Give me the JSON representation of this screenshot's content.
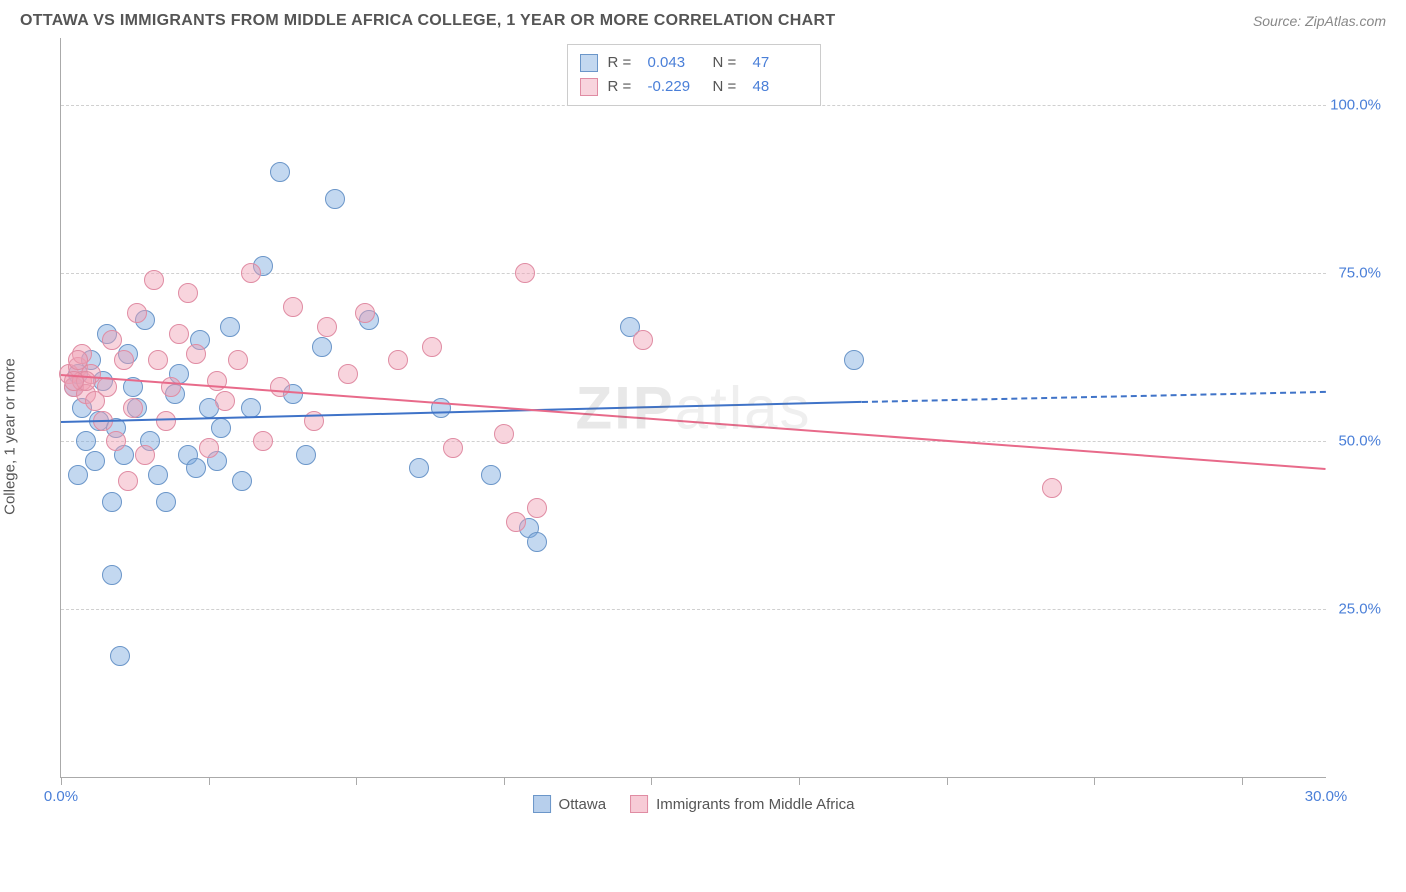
{
  "title": "OTTAWA VS IMMIGRANTS FROM MIDDLE AFRICA COLLEGE, 1 YEAR OR MORE CORRELATION CHART",
  "source": "Source: ZipAtlas.com",
  "watermark_bold": "ZIP",
  "watermark_rest": "atlas",
  "ylabel": "College, 1 year or more",
  "chart": {
    "type": "scatter",
    "x_domain": [
      0,
      30
    ],
    "y_domain": [
      0,
      110
    ],
    "x_ticks": [
      0,
      3.5,
      7,
      10.5,
      14,
      17.5,
      21,
      24.5,
      28
    ],
    "x_tick_labels": {
      "0": "0.0%",
      "30": "30.0%"
    },
    "y_gridlines": [
      25,
      50,
      75,
      100
    ],
    "y_tick_labels": {
      "25": "25.0%",
      "50": "50.0%",
      "75": "75.0%",
      "100": "100.0%"
    },
    "grid_color": "#d0d0d0",
    "axis_color": "#aaaaaa",
    "background_color": "#ffffff",
    "point_radius": 10,
    "series": [
      {
        "name": "Ottawa",
        "fill": "rgba(123,168,221,0.45)",
        "stroke": "#6b96c9",
        "r_value": "0.043",
        "n_value": "47",
        "trend": {
          "x1": 0,
          "y1": 53,
          "x2": 19,
          "y2": 56,
          "dash_x2": 30,
          "dash_y2": 57.5,
          "color": "#3f73c8",
          "width": 2
        },
        "points": [
          [
            0.3,
            58
          ],
          [
            0.4,
            60
          ],
          [
            0.5,
            55
          ],
          [
            0.6,
            50
          ],
          [
            0.7,
            62
          ],
          [
            0.8,
            47
          ],
          [
            0.9,
            53
          ],
          [
            0.4,
            45
          ],
          [
            1.0,
            59
          ],
          [
            1.1,
            66
          ],
          [
            1.2,
            41
          ],
          [
            1.3,
            52
          ],
          [
            1.5,
            48
          ],
          [
            1.6,
            63
          ],
          [
            1.7,
            58
          ],
          [
            1.8,
            55
          ],
          [
            1.2,
            30
          ],
          [
            1.4,
            18
          ],
          [
            2.0,
            68
          ],
          [
            2.1,
            50
          ],
          [
            2.3,
            45
          ],
          [
            2.5,
            41
          ],
          [
            2.7,
            57
          ],
          [
            2.8,
            60
          ],
          [
            3.0,
            48
          ],
          [
            3.2,
            46
          ],
          [
            3.3,
            65
          ],
          [
            3.5,
            55
          ],
          [
            3.7,
            47
          ],
          [
            3.8,
            52
          ],
          [
            4.0,
            67
          ],
          [
            4.3,
            44
          ],
          [
            4.5,
            55
          ],
          [
            4.8,
            76
          ],
          [
            5.2,
            90
          ],
          [
            5.5,
            57
          ],
          [
            5.8,
            48
          ],
          [
            6.2,
            64
          ],
          [
            6.5,
            86
          ],
          [
            7.3,
            68
          ],
          [
            8.5,
            46
          ],
          [
            9.0,
            55
          ],
          [
            10.2,
            45
          ],
          [
            11.1,
            37
          ],
          [
            11.3,
            35
          ],
          [
            13.5,
            67
          ],
          [
            18.8,
            62
          ]
        ]
      },
      {
        "name": "Immigrants from Middle Africa",
        "fill": "rgba(240,160,180,0.45)",
        "stroke": "#e08ca3",
        "r_value": "-0.229",
        "n_value": "48",
        "trend": {
          "x1": 0,
          "y1": 60,
          "x2": 30,
          "y2": 46,
          "color": "#e86a8a",
          "width": 2
        },
        "points": [
          [
            0.2,
            60
          ],
          [
            0.3,
            58
          ],
          [
            0.4,
            61
          ],
          [
            0.5,
            59
          ],
          [
            0.5,
            63
          ],
          [
            0.6,
            57
          ],
          [
            0.7,
            60
          ],
          [
            0.8,
            56
          ],
          [
            0.4,
            62
          ],
          [
            0.6,
            59
          ],
          [
            1.0,
            53
          ],
          [
            1.1,
            58
          ],
          [
            1.2,
            65
          ],
          [
            1.3,
            50
          ],
          [
            1.5,
            62
          ],
          [
            1.6,
            44
          ],
          [
            1.7,
            55
          ],
          [
            1.8,
            69
          ],
          [
            2.0,
            48
          ],
          [
            2.2,
            74
          ],
          [
            2.3,
            62
          ],
          [
            2.5,
            53
          ],
          [
            2.6,
            58
          ],
          [
            2.8,
            66
          ],
          [
            3.0,
            72
          ],
          [
            3.2,
            63
          ],
          [
            3.5,
            49
          ],
          [
            3.7,
            59
          ],
          [
            3.9,
            56
          ],
          [
            4.2,
            62
          ],
          [
            4.5,
            75
          ],
          [
            4.8,
            50
          ],
          [
            5.2,
            58
          ],
          [
            5.5,
            70
          ],
          [
            6.0,
            53
          ],
          [
            6.3,
            67
          ],
          [
            6.8,
            60
          ],
          [
            7.2,
            69
          ],
          [
            8.0,
            62
          ],
          [
            8.8,
            64
          ],
          [
            9.3,
            49
          ],
          [
            10.5,
            51
          ],
          [
            10.8,
            38
          ],
          [
            11.0,
            75
          ],
          [
            11.3,
            40
          ],
          [
            13.8,
            65
          ],
          [
            23.5,
            43
          ],
          [
            0.3,
            59
          ]
        ]
      }
    ]
  },
  "legend_bottom": [
    {
      "label": "Ottawa",
      "fill": "rgba(123,168,221,0.55)",
      "stroke": "#6b96c9"
    },
    {
      "label": "Immigrants from Middle Africa",
      "fill": "rgba(240,160,180,0.55)",
      "stroke": "#e08ca3"
    }
  ]
}
